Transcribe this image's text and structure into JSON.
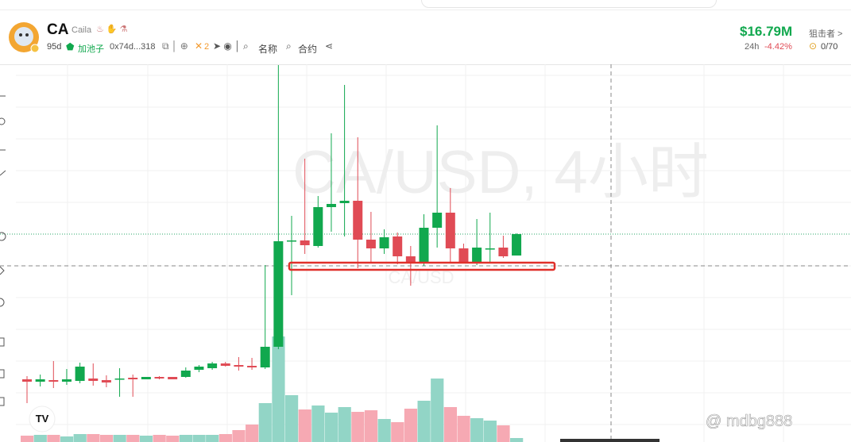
{
  "header": {
    "symbol": "CA",
    "name": "Caila",
    "age": "95d",
    "pool": "加池子",
    "address": "0x74d...318",
    "x_count": "2",
    "name_search": "名称",
    "contract_search": "合约",
    "market_cap": "$16.79M",
    "period": "24h",
    "change": "-4.42%",
    "snipers": "狙击者 >",
    "sniper_count": "0/70"
  },
  "chart_data": {
    "type": "candlestick",
    "watermark": "CA/USD, 4小时",
    "watermark_small": "CA/USD",
    "overlay_user": "@ mdbg888",
    "up_color": "#11a84e",
    "down_color": "#e04b55",
    "volume_up_color": "#92d5c6",
    "volume_down_color": "#f6a9b3",
    "ylim": [
      0,
      480
    ],
    "volume_lim": [
      0,
      150
    ],
    "open": [
      82,
      79,
      81,
      79,
      80,
      83,
      81,
      82,
      84,
      82,
      85,
      85,
      85,
      94,
      96,
      102,
      100,
      99,
      97,
      123,
      256,
      257,
      250,
      299,
      304,
      307,
      258,
      247,
      262,
      237,
      230,
      273,
      292,
      247,
      230,
      247,
      248,
      238
    ],
    "high": [
      86,
      88,
      105,
      95,
      103,
      102,
      87,
      96,
      88,
      85,
      86,
      85,
      97,
      100,
      104,
      104,
      110,
      109,
      226,
      478,
      288,
      360,
      313,
      392,
      453,
      387,
      293,
      271,
      267,
      250,
      290,
      402,
      323,
      253,
      284,
      292,
      263,
      266
    ],
    "low": [
      52,
      73,
      71,
      75,
      77,
      74,
      72,
      60,
      60,
      82,
      82,
      82,
      84,
      91,
      94,
      98,
      93,
      94,
      95,
      120,
      188,
      240,
      248,
      268,
      262,
      222,
      230,
      240,
      227,
      200,
      225,
      248,
      230,
      230,
      226,
      230,
      235,
      238
    ],
    "close": [
      79,
      82,
      79,
      82,
      98,
      80,
      78,
      83,
      82,
      85,
      83,
      82,
      93,
      98,
      102,
      99,
      98,
      97,
      123,
      256,
      257,
      251,
      299,
      303,
      307,
      258,
      247,
      261,
      237,
      229,
      273,
      292,
      247,
      230,
      248,
      247,
      237,
      265
    ],
    "volume": [
      8,
      9,
      9,
      7,
      10,
      10,
      9,
      9,
      9,
      8,
      9,
      8,
      9,
      9,
      9,
      10,
      15,
      22,
      49,
      133,
      59,
      41,
      46,
      37,
      44,
      38,
      40,
      29,
      25,
      42,
      52,
      80,
      44,
      33,
      30,
      27,
      21,
      5
    ]
  }
}
